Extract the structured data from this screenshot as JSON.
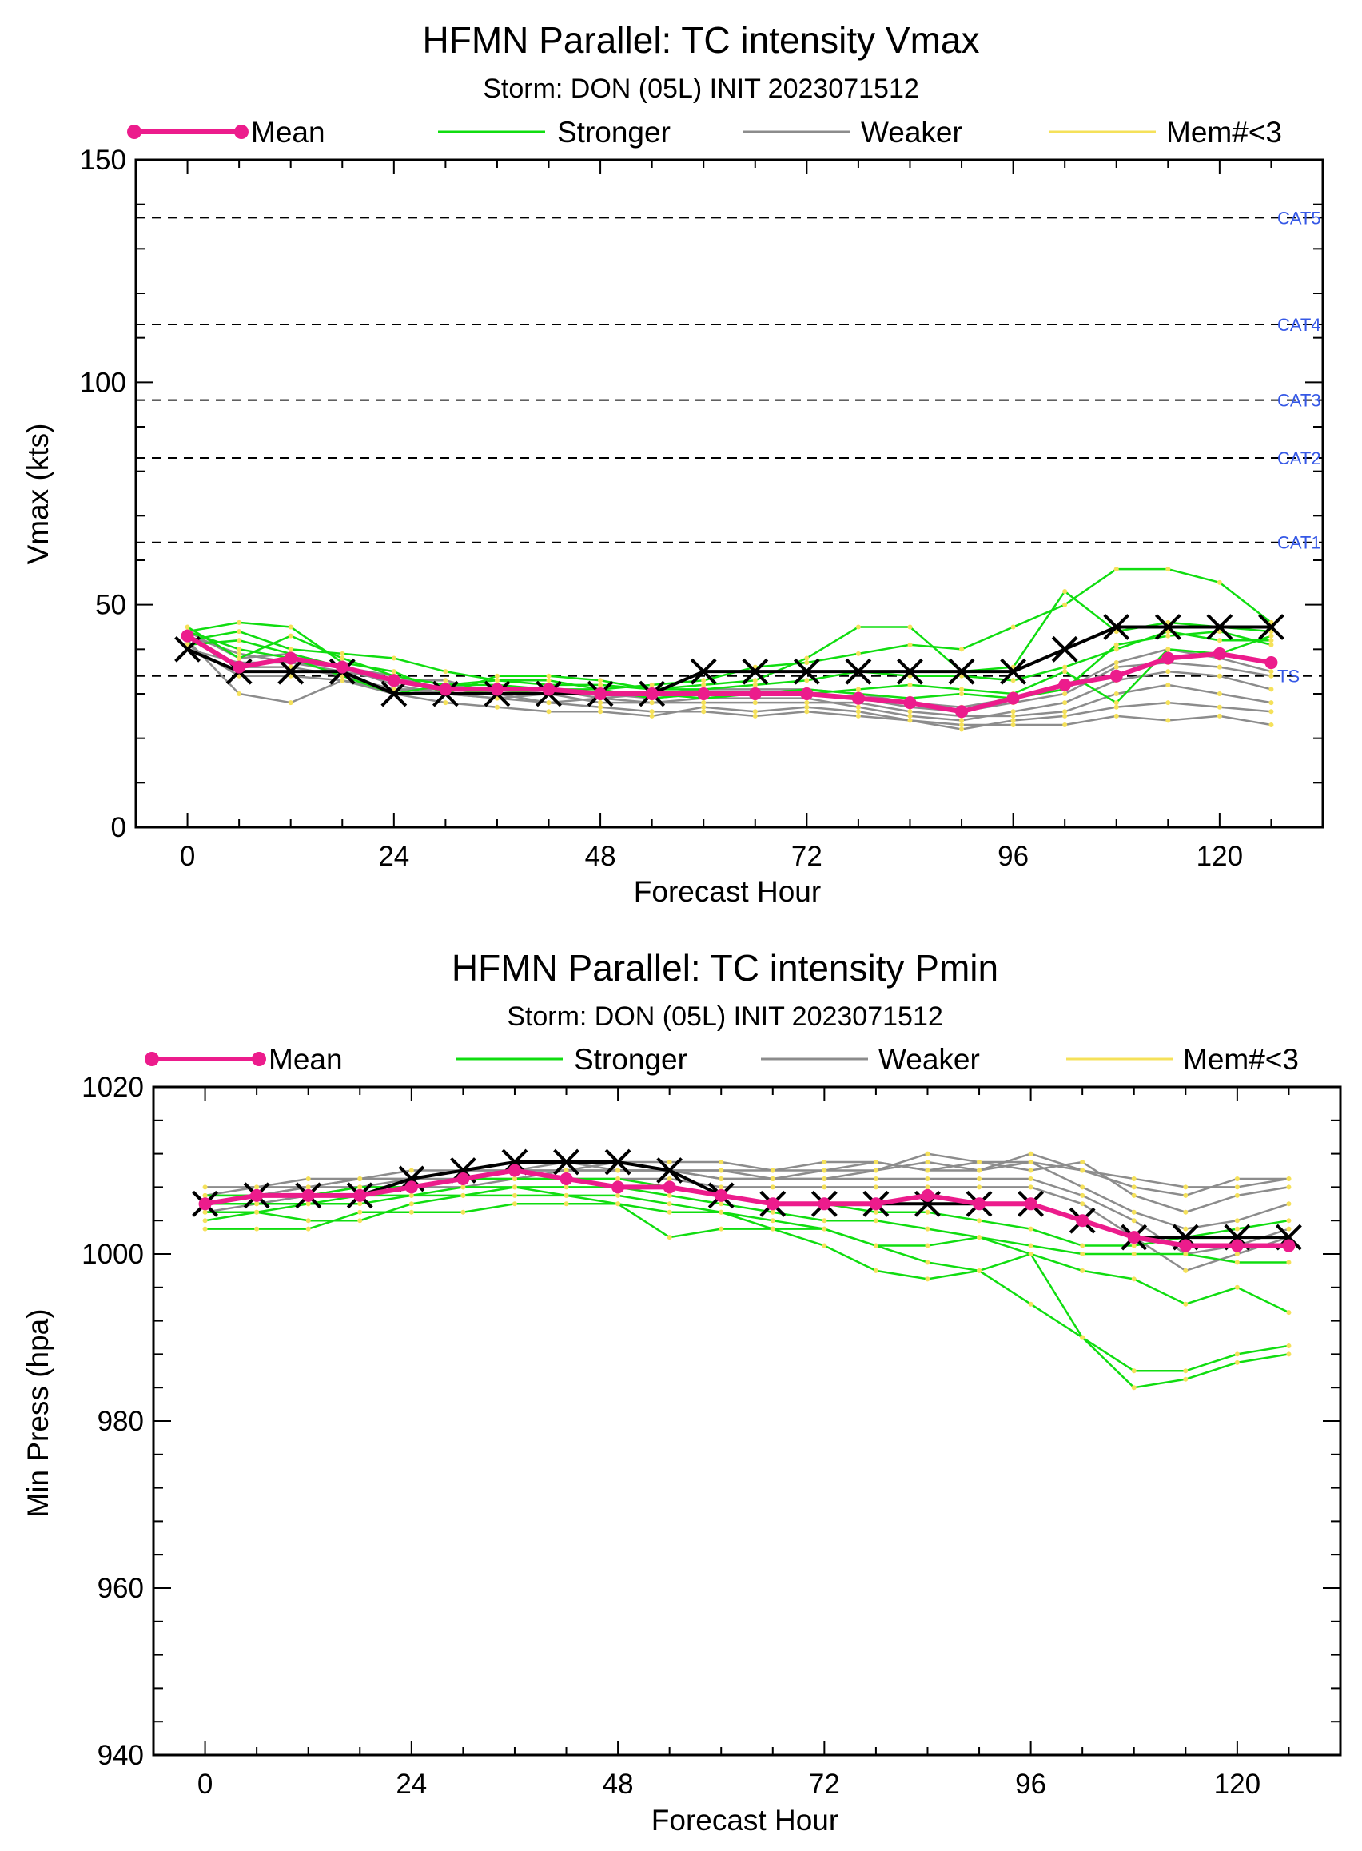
{
  "colors": {
    "mean": "#ec1c8c",
    "stronger": "#10dd10",
    "weaker": "#8c8c8c",
    "few_members": "#f5e15a",
    "ofcl": "#000000",
    "cat_label": "#3558e6"
  },
  "chart_data": [
    {
      "type": "line",
      "title": "HFMN Parallel: TC intensity Vmax",
      "subtitle": "Storm: DON (05L) INIT 2023071512",
      "xlabel": "Forecast Hour",
      "ylabel": "Vmax (kts)",
      "xlim": [
        -6,
        132
      ],
      "ylim": [
        0,
        150
      ],
      "xticks": [
        0,
        24,
        48,
        72,
        96,
        120
      ],
      "yticks": [
        0,
        50,
        100,
        150
      ],
      "legend": [
        "Mean",
        "Stronger",
        "Weaker",
        "Mem#<3"
      ],
      "legend_position": "top",
      "thresholds": [
        {
          "label": "TS",
          "value": 34
        },
        {
          "label": "CAT1",
          "value": 64
        },
        {
          "label": "CAT2",
          "value": 83
        },
        {
          "label": "CAT3",
          "value": 96
        },
        {
          "label": "CAT4",
          "value": 113
        },
        {
          "label": "CAT5",
          "value": 137
        }
      ],
      "x": [
        0,
        6,
        12,
        18,
        24,
        30,
        36,
        42,
        48,
        54,
        60,
        66,
        72,
        78,
        84,
        90,
        96,
        102,
        108,
        114,
        120,
        126
      ],
      "series": [
        {
          "name": "Mean",
          "values": [
            43,
            36,
            38,
            36,
            33,
            31,
            31,
            31,
            30,
            30,
            30,
            30,
            30,
            29,
            28,
            26,
            29,
            32,
            34,
            38,
            39,
            37
          ]
        },
        {
          "name": "",
          "values": [
            40,
            35,
            35,
            35,
            30,
            30,
            30,
            30,
            30,
            30,
            35,
            35,
            35,
            35,
            35,
            35,
            35,
            40,
            45,
            45,
            45,
            45
          ]
        }
      ],
      "member_lines": {
        "stronger": [
          [
            45,
            38,
            43,
            38,
            34,
            32,
            33,
            33,
            31,
            32,
            33,
            36,
            37,
            39,
            41,
            40,
            45,
            50,
            58,
            58,
            55,
            46
          ],
          [
            44,
            46,
            45,
            37,
            35,
            30,
            34,
            34,
            33,
            31,
            32,
            33,
            38,
            45,
            45,
            35,
            36,
            53,
            44,
            46,
            45,
            44
          ],
          [
            42,
            44,
            40,
            39,
            38,
            35,
            33,
            32,
            32,
            31,
            31,
            32,
            33,
            35,
            34,
            34,
            33,
            36,
            40,
            44,
            42,
            42
          ],
          [
            44,
            40,
            38,
            34,
            30,
            32,
            32,
            31,
            30,
            30,
            29,
            30,
            30,
            31,
            32,
            31,
            30,
            35,
            28,
            40,
            39,
            43
          ],
          [
            41,
            42,
            39,
            36,
            33,
            31,
            30,
            31,
            31,
            29,
            30,
            30,
            31,
            30,
            29,
            30,
            29,
            31,
            41,
            43,
            44,
            41
          ]
        ],
        "weaker": [
          [
            42,
            30,
            28,
            33,
            31,
            30,
            29,
            28,
            27,
            26,
            26,
            25,
            26,
            25,
            24,
            23,
            23,
            23,
            25,
            24,
            25,
            23
          ],
          [
            41,
            34,
            34,
            33,
            30,
            28,
            27,
            26,
            26,
            25,
            27,
            26,
            27,
            26,
            24,
            22,
            24,
            25,
            27,
            28,
            27,
            26
          ],
          [
            43,
            36,
            36,
            34,
            31,
            31,
            30,
            28,
            29,
            28,
            28,
            28,
            28,
            28,
            26,
            25,
            25,
            26,
            30,
            32,
            30,
            28
          ],
          [
            40,
            37,
            37,
            36,
            32,
            30,
            29,
            30,
            28,
            28,
            29,
            29,
            29,
            27,
            25,
            24,
            26,
            28,
            33,
            35,
            34,
            31
          ],
          [
            44,
            38,
            39,
            36,
            34,
            32,
            31,
            30,
            30,
            29,
            30,
            30,
            30,
            29,
            27,
            26,
            28,
            30,
            36,
            37,
            36,
            34
          ],
          [
            43,
            39,
            37,
            35,
            33,
            33,
            30,
            31,
            29,
            30,
            31,
            31,
            31,
            30,
            28,
            27,
            29,
            31,
            37,
            40,
            38,
            35
          ]
        ]
      }
    },
    {
      "type": "line",
      "title": "HFMN Parallel: TC intensity Pmin",
      "subtitle": "Storm: DON (05L) INIT 2023071512",
      "xlabel": "Forecast Hour",
      "ylabel": "Min Press (hpa)",
      "xlim": [
        -6,
        132
      ],
      "ylim": [
        940,
        1020
      ],
      "xticks": [
        0,
        24,
        48,
        72,
        96,
        120
      ],
      "yticks": [
        940,
        960,
        980,
        1000,
        1020
      ],
      "legend": [
        "Mean",
        "Stronger",
        "Weaker",
        "Mem#<3"
      ],
      "legend_position": "top",
      "x": [
        0,
        6,
        12,
        18,
        24,
        30,
        36,
        42,
        48,
        54,
        60,
        66,
        72,
        78,
        84,
        90,
        96,
        102,
        108,
        114,
        120,
        126
      ],
      "series": [
        {
          "name": "Mean",
          "values": [
            1006,
            1007,
            1007,
            1007,
            1008,
            1009,
            1010,
            1009,
            1008,
            1008,
            1007,
            1006,
            1006,
            1006,
            1007,
            1006,
            1006,
            1004,
            1002,
            1001,
            1001,
            1001
          ]
        },
        {
          "name": "",
          "values": [
            1006,
            1007,
            1007,
            1007,
            1009,
            1010,
            1011,
            1011,
            1011,
            1010,
            1007,
            1006,
            1006,
            1006,
            1006,
            1006,
            1006,
            1004,
            1002,
            1002,
            1002,
            1002
          ]
        }
      ],
      "member_lines": {
        "stronger": [
          [
            1003,
            1003,
            1003,
            1005,
            1005,
            1005,
            1006,
            1006,
            1006,
            1005,
            1005,
            1004,
            1003,
            1001,
            999,
            998,
            994,
            990,
            984,
            985,
            987,
            988
          ],
          [
            1004,
            1005,
            1004,
            1004,
            1006,
            1007,
            1007,
            1007,
            1006,
            1002,
            1003,
            1003,
            1003,
            1001,
            1001,
            1002,
            1000,
            990,
            986,
            986,
            988,
            989
          ],
          [
            1005,
            1005,
            1006,
            1006,
            1007,
            1007,
            1008,
            1007,
            1007,
            1006,
            1005,
            1003,
            1001,
            998,
            997,
            998,
            1000,
            998,
            997,
            994,
            996,
            993
          ],
          [
            1006,
            1006,
            1006,
            1007,
            1007,
            1008,
            1008,
            1008,
            1008,
            1007,
            1006,
            1005,
            1004,
            1004,
            1003,
            1002,
            1001,
            1000,
            1000,
            1000,
            999,
            999
          ],
          [
            1007,
            1007,
            1007,
            1008,
            1008,
            1009,
            1009,
            1009,
            1009,
            1008,
            1007,
            1006,
            1006,
            1005,
            1005,
            1004,
            1003,
            1001,
            1001,
            1002,
            1003,
            1004
          ]
        ],
        "weaker": [
          [
            1005,
            1006,
            1007,
            1008,
            1008,
            1009,
            1009,
            1010,
            1010,
            1010,
            1010,
            1009,
            1009,
            1010,
            1011,
            1010,
            1011,
            1010,
            1008,
            1007,
            1009,
            1009
          ],
          [
            1006,
            1007,
            1008,
            1009,
            1009,
            1010,
            1010,
            1010,
            1011,
            1010,
            1009,
            1009,
            1010,
            1011,
            1010,
            1010,
            1012,
            1010,
            1009,
            1008,
            1008,
            1009
          ],
          [
            1007,
            1008,
            1008,
            1009,
            1010,
            1010,
            1011,
            1011,
            1010,
            1010,
            1010,
            1010,
            1010,
            1010,
            1012,
            1011,
            1010,
            1011,
            1007,
            1005,
            1007,
            1008
          ],
          [
            1008,
            1008,
            1009,
            1009,
            1009,
            1010,
            1010,
            1011,
            1011,
            1011,
            1011,
            1010,
            1011,
            1011,
            1010,
            1011,
            1011,
            1008,
            1005,
            1003,
            1004,
            1006
          ],
          [
            1006,
            1006,
            1007,
            1007,
            1008,
            1008,
            1009,
            1009,
            1009,
            1009,
            1008,
            1008,
            1008,
            1008,
            1008,
            1008,
            1008,
            1006,
            1002,
            998,
            1000,
            1002
          ],
          [
            1007,
            1007,
            1008,
            1008,
            1009,
            1009,
            1010,
            1010,
            1010,
            1010,
            1009,
            1009,
            1009,
            1009,
            1009,
            1009,
            1009,
            1007,
            1004,
            1000,
            1001,
            1003
          ]
        ]
      }
    }
  ]
}
